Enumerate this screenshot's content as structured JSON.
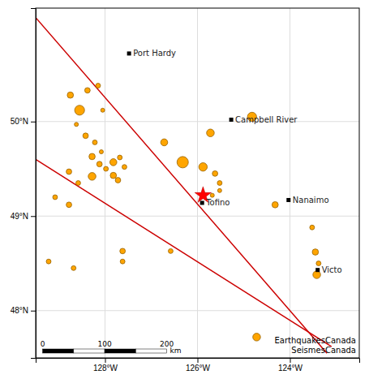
{
  "chart_data": {
    "type": "scatter",
    "title": "EarthquakesCanada\nSeismesCanada",
    "xlim": [
      -129.5,
      -122.5
    ],
    "ylim": [
      47.5,
      51.2
    ],
    "xticks": [
      {
        "value": -128,
        "label": "128°W"
      },
      {
        "value": -126,
        "label": "126°W"
      },
      {
        "value": -124,
        "label": "124°W"
      }
    ],
    "yticks": [
      {
        "value": 48,
        "label": "48°N"
      },
      {
        "value": 49,
        "label": "49°N"
      },
      {
        "value": 50,
        "label": "50°N"
      }
    ],
    "grid": true,
    "color": "#FFA500",
    "x": [
      -128.75,
      -128.38,
      -128.15,
      -128.55,
      -128.05,
      -128.62,
      -128.42,
      -128.22,
      -128.08,
      -128.28,
      -128.12,
      -127.98,
      -127.82,
      -127.68,
      -127.58,
      -128.28,
      -127.82,
      -127.72,
      -128.78,
      -128.58,
      -129.08,
      -128.78,
      -126.72,
      -126.32,
      -125.88,
      -125.62,
      -125.52,
      -125.52,
      -125.68,
      -125.72,
      -124.82,
      -126.58,
      -127.62,
      -127.62,
      -129.22,
      -128.68,
      -124.32,
      -123.52,
      -123.45,
      -123.38,
      -123.42,
      -124.72
    ],
    "values": [
      50.28,
      50.33,
      50.38,
      50.12,
      50.12,
      49.97,
      49.85,
      49.78,
      49.68,
      49.63,
      49.55,
      49.5,
      49.57,
      49.62,
      49.52,
      49.42,
      49.43,
      49.38,
      49.47,
      49.35,
      49.2,
      49.12,
      49.78,
      49.57,
      49.52,
      49.45,
      49.35,
      49.27,
      49.22,
      49.88,
      50.05,
      48.63,
      48.63,
      48.52,
      48.52,
      48.45,
      49.12,
      48.88,
      48.62,
      48.5,
      48.38,
      47.72
    ],
    "magnitudes": [
      5.3,
      5.2,
      5.1,
      5.8,
      5.0,
      5.0,
      5.2,
      5.1,
      5.0,
      5.3,
      5.2,
      5.1,
      5.4,
      5.1,
      5.1,
      5.5,
      5.3,
      5.2,
      5.2,
      5.1,
      5.1,
      5.2,
      5.4,
      6.0,
      5.6,
      5.2,
      5.1,
      5.0,
      5.0,
      5.5,
      5.7,
      5.1,
      5.2,
      5.1,
      5.1,
      5.1,
      5.3,
      5.1,
      5.3,
      5.1,
      5.5,
      5.5
    ],
    "star": {
      "x": -125.88,
      "value": 49.22,
      "color": "red",
      "marker": "star"
    },
    "cities": [
      {
        "name": "Port Hardy",
        "x": -127.48,
        "value": 50.72
      },
      {
        "name": "Campbell River",
        "x": -125.27,
        "value": 50.02
      },
      {
        "name": "Nanaimo",
        "x": -124.03,
        "value": 49.17
      },
      {
        "name": "Tofino",
        "x": -125.9,
        "value": 49.14
      },
      {
        "name": "Victo",
        "x": -123.4,
        "value": 48.43
      }
    ],
    "lines": [
      {
        "x": [
          -129.5,
          -123.2
        ],
        "values": [
          51.1,
          47.55
        ],
        "color": "#CC0000"
      },
      {
        "x": [
          -129.5,
          -123.1
        ],
        "values": [
          49.6,
          47.62
        ],
        "color": "#CC0000"
      }
    ],
    "scale_bar": {
      "x": [
        -129.35,
        -128.0075,
        -126.665
      ],
      "y": 47.56,
      "ticks": [
        0,
        100,
        200
      ],
      "unit": "km"
    }
  }
}
